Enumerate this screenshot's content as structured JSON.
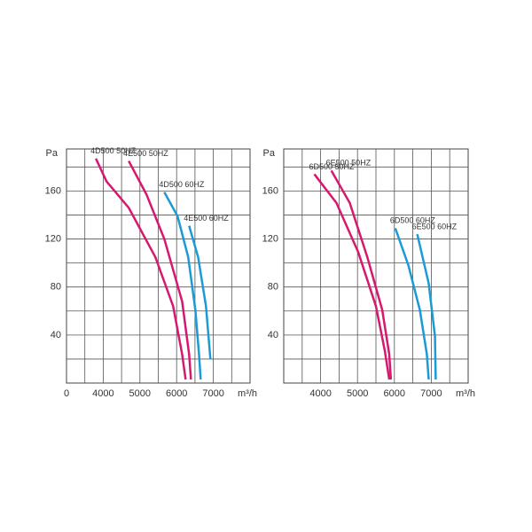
{
  "chart_data": [
    {
      "type": "line",
      "x_label": "m³/h",
      "y_label": "Pa",
      "x_origin_label": "0",
      "xlim": [
        3000,
        8000
      ],
      "xticks": [
        4000,
        5000,
        6000,
        7000
      ],
      "ylim": [
        0,
        195
      ],
      "yticks": [
        40,
        80,
        120,
        160
      ],
      "xgrid": [
        3500,
        4000,
        4500,
        5000,
        5500,
        6000,
        6500,
        7000,
        7500
      ],
      "ygrid": [
        20,
        40,
        60,
        80,
        100,
        120,
        140,
        160,
        180
      ],
      "series": [
        {
          "name": "4D500 50HZ",
          "color": "#d6186f",
          "x": [
            3800,
            4090,
            4695,
            5420,
            5905,
            6150,
            6245
          ],
          "values": [
            187,
            168,
            146,
            105,
            64,
            24,
            3
          ]
        },
        {
          "name": "4E500 50HZ",
          "color": "#d6186f",
          "x": [
            4695,
            5180,
            5665,
            6150,
            6340,
            6390
          ],
          "values": [
            185,
            157,
            120,
            68,
            24,
            3
          ]
        },
        {
          "name": "4D500 60HZ",
          "color": "#1a9ad6",
          "x": [
            5665,
            6025,
            6315,
            6510,
            6610,
            6655
          ],
          "values": [
            159,
            139,
            105,
            61,
            24,
            3
          ]
        },
        {
          "name": "4E500 60HZ",
          "color": "#1a9ad6",
          "x": [
            6340,
            6585,
            6800,
            6920
          ],
          "values": [
            131,
            105,
            64,
            20
          ]
        }
      ]
    },
    {
      "type": "line",
      "x_label": "m³/h",
      "y_label": "Pa",
      "xlim": [
        3000,
        8000
      ],
      "xticks": [
        4000,
        5000,
        6000,
        7000
      ],
      "ylim": [
        0,
        195
      ],
      "yticks": [
        40,
        80,
        120,
        160
      ],
      "xgrid": [
        3500,
        4000,
        4500,
        5000,
        5500,
        6000,
        6500,
        7000,
        7500
      ],
      "ygrid": [
        20,
        40,
        60,
        80,
        100,
        120,
        140,
        160,
        180
      ],
      "series": [
        {
          "name": "6D500 50HZ",
          "color": "#d6186f",
          "x": [
            3830,
            4430,
            5020,
            5500,
            5740,
            5860
          ],
          "values": [
            174,
            150,
            109,
            64,
            27,
            3
          ]
        },
        {
          "name": "6E500 50HZ",
          "color": "#d6186f",
          "x": [
            4290,
            4790,
            5265,
            5670,
            5860,
            5905
          ],
          "values": [
            177,
            150,
            105,
            61,
            24,
            3
          ]
        },
        {
          "name": "6D500 60HZ",
          "color": "#1a9ad6",
          "x": [
            6025,
            6380,
            6690,
            6880,
            6930
          ],
          "values": [
            129,
            98,
            61,
            24,
            3
          ]
        },
        {
          "name": "6E500 60HZ",
          "color": "#1a9ad6",
          "x": [
            6620,
            6930,
            7100,
            7120
          ],
          "values": [
            124,
            83,
            39,
            3
          ]
        }
      ]
    }
  ]
}
